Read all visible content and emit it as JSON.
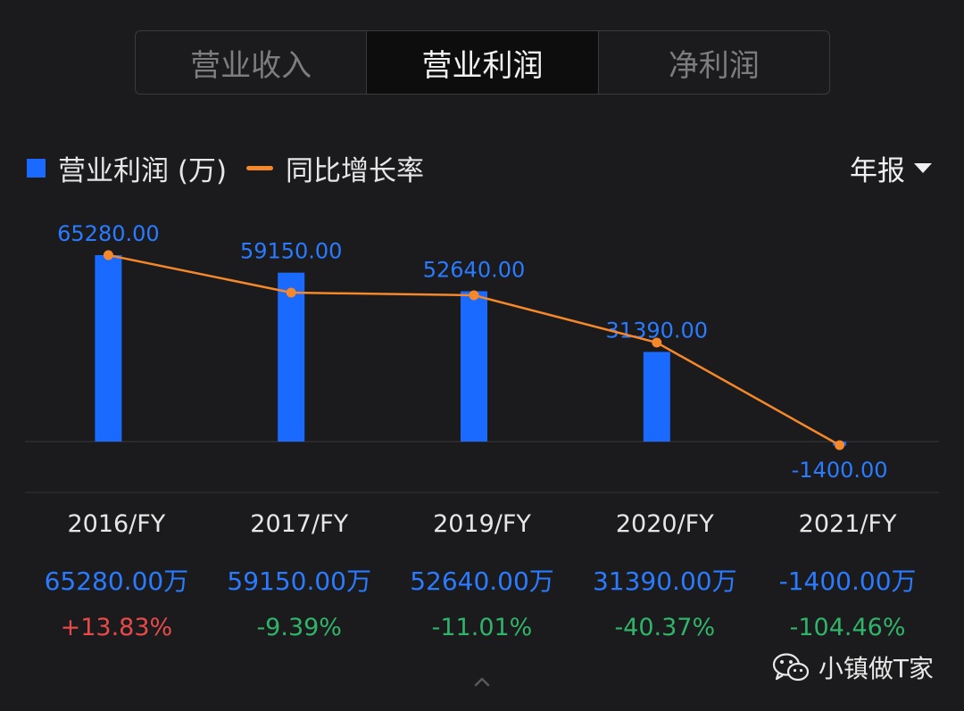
{
  "tabs": [
    {
      "label": "营业收入",
      "active": false
    },
    {
      "label": "营业利润",
      "active": true
    },
    {
      "label": "净利润",
      "active": false
    }
  ],
  "legend": {
    "bar_label": "营业利润 (万)",
    "line_label": "同比增长率"
  },
  "period_selector": {
    "label": "年报",
    "icon": "caret-down-icon"
  },
  "colors": {
    "bar": "#1a6aff",
    "line": "#f5882a",
    "bar_label": "#2a7bff",
    "positive": "#e84a4a",
    "negative": "#2fb46a"
  },
  "chart_data": {
    "type": "bar",
    "categories": [
      "2016/FY",
      "2017/FY",
      "2019/FY",
      "2020/FY",
      "2021/FY"
    ],
    "series": [
      {
        "name": "营业利润 (万)",
        "type": "bar",
        "values": [
          65280.0,
          59150.0,
          52640.0,
          31390.0,
          -1400.0
        ],
        "data_labels": [
          "65280.00",
          "59150.00",
          "52640.00",
          "31390.00",
          "-1400.00"
        ]
      },
      {
        "name": "同比增长率",
        "type": "line",
        "values": [
          13.83,
          -9.39,
          -11.01,
          -40.37,
          -104.46
        ]
      }
    ],
    "ylim": [
      -1400,
      65280
    ],
    "legend": "top-left",
    "grid": false
  },
  "table": {
    "years": [
      "2016/FY",
      "2017/FY",
      "2019/FY",
      "2020/FY",
      "2021/FY"
    ],
    "values": [
      "65280.00万",
      "59150.00万",
      "52640.00万",
      "31390.00万",
      "-1400.00万"
    ],
    "rates": [
      "+13.83%",
      "-9.39%",
      "-11.01%",
      "-40.37%",
      "-104.46%"
    ]
  },
  "brand": {
    "label": "小镇做T家",
    "icon": "wechat-icon"
  },
  "expand_icon": "chevron-up-icon"
}
